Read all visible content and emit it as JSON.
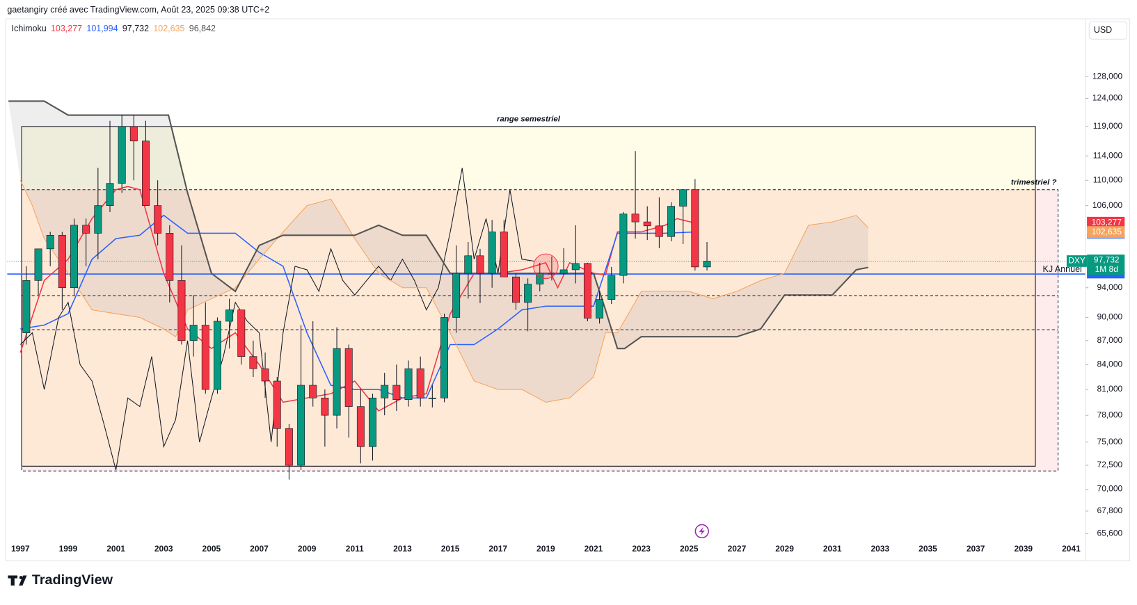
{
  "header": "gaetangiry créé avec TradingView.com, Août 23, 2025 09:38 UTC+2",
  "brand": "TradingView",
  "chart_data": {
    "type": "candlestick",
    "currency": "USD",
    "symbol": "DXY",
    "countdown": "1M 8d",
    "log_scale": true,
    "indicator": "Ichimoku",
    "indicator_values": [
      {
        "value": 103277,
        "label": "103,277"
      },
      {
        "value": 101994,
        "label": "101,994"
      },
      {
        "value": 97732,
        "label": "97,732"
      },
      {
        "value": 102635,
        "label": "102,635"
      },
      {
        "value": 96842,
        "label": "96,842"
      }
    ],
    "indicator_colors": [
      "#f23645",
      "#2962ff",
      "#131722",
      "#f7a35c",
      "#555555"
    ],
    "xlim": [
      1996.45,
      2041.6
    ],
    "ylim": [
      63300,
      139000
    ],
    "xticks": [
      1997,
      1999,
      2001,
      2003,
      2005,
      2007,
      2009,
      2011,
      2013,
      2015,
      2017,
      2019,
      2021,
      2023,
      2025,
      2027,
      2029,
      2031,
      2033,
      2035,
      2037,
      2039,
      2041
    ],
    "yticks": [
      {
        "value": 128000,
        "label": "128,000"
      },
      {
        "value": 124000,
        "label": "124,000"
      },
      {
        "value": 119000,
        "label": "119,000"
      },
      {
        "value": 114000,
        "label": "114,000"
      },
      {
        "value": 110000,
        "label": "110,000"
      },
      {
        "value": 106000,
        "label": "106,000"
      },
      {
        "value": 94000,
        "label": "94,000"
      },
      {
        "value": 90000,
        "label": "90,000"
      },
      {
        "value": 87000,
        "label": "87,000"
      },
      {
        "value": 84000,
        "label": "84,000"
      },
      {
        "value": 81000,
        "label": "81,000"
      },
      {
        "value": 78000,
        "label": "78,000"
      },
      {
        "value": 75000,
        "label": "75,000"
      },
      {
        "value": 72500,
        "label": "72,500"
      },
      {
        "value": 70000,
        "label": "70,000"
      },
      {
        "value": 67800,
        "label": "67,800"
      },
      {
        "value": 65600,
        "label": "65,600"
      }
    ],
    "up_color": "#089981",
    "down_color": "#f23645",
    "candles": {
      "x": [
        1997,
        1997.5,
        1998,
        1998.5,
        1999,
        1999.5,
        2000,
        2000.5,
        2001,
        2001.5,
        2002,
        2002.5,
        2003,
        2003.5,
        2004,
        2004.5,
        2005,
        2005.5,
        2006,
        2006.5,
        2007,
        2007.5,
        2008,
        2008.5,
        2009,
        2009.5,
        2010,
        2010.5,
        2011,
        2011.5,
        2012,
        2012.5,
        2013,
        2013.5,
        2014,
        2014.5,
        2015,
        2015.5,
        2016,
        2016.5,
        2017,
        2017.5,
        2018,
        2018.5,
        2019,
        2019.5,
        2020,
        2020.5,
        2021,
        2021.5,
        2022,
        2022.5,
        2023,
        2023.5,
        2024,
        2024.5,
        2025,
        2025.5
      ],
      "open": [
        88000,
        95000,
        99500,
        101500,
        94000,
        103000,
        101800,
        106000,
        109500,
        119000,
        116500,
        106000,
        101800,
        95000,
        87000,
        89000,
        81000,
        89500,
        91000,
        85000,
        83500,
        82000,
        76500,
        72500,
        81500,
        80000,
        78000,
        86000,
        79000,
        74500,
        80000,
        81500,
        79800,
        83500,
        80000,
        80000,
        90000,
        96000,
        98500,
        96000,
        102000,
        95500,
        92000,
        94500,
        96000,
        96000,
        96500,
        97400,
        89900,
        92400,
        95700,
        104700,
        103500,
        102900,
        101300,
        105900,
        108500,
        96900
      ],
      "high": [
        97000,
        99500,
        102000,
        102000,
        104000,
        104000,
        112000,
        120000,
        121000,
        121000,
        120000,
        110000,
        103000,
        100000,
        93000,
        92000,
        90000,
        92500,
        91000,
        87000,
        85500,
        82500,
        77000,
        89000,
        89500,
        81000,
        88700,
        86500,
        81000,
        80500,
        83000,
        84000,
        84500,
        85000,
        81500,
        90500,
        100000,
        100500,
        99500,
        103800,
        103800,
        96000,
        95300,
        97500,
        98400,
        99600,
        103000,
        97500,
        93500,
        96900,
        105000,
        114800,
        105900,
        107300,
        106500,
        108500,
        110200,
        100500
      ],
      "low": [
        86500,
        93000,
        97000,
        91000,
        93000,
        97000,
        98000,
        105000,
        108000,
        110000,
        106000,
        100000,
        92000,
        86500,
        85000,
        80500,
        80500,
        86000,
        84000,
        82500,
        80000,
        74500,
        71000,
        72000,
        79000,
        74500,
        76500,
        75500,
        72700,
        73000,
        78000,
        78500,
        79000,
        79000,
        78900,
        79500,
        88000,
        92500,
        91900,
        94000,
        95500,
        91000,
        88200,
        93500,
        95000,
        95800,
        94600,
        89500,
        89200,
        91800,
        94600,
        101000,
        100800,
        99600,
        100600,
        100200,
        96400,
        96400
      ],
      "close": [
        95000,
        99500,
        101500,
        94000,
        103000,
        101800,
        106000,
        109500,
        119000,
        116500,
        106000,
        101800,
        95000,
        87000,
        89000,
        81000,
        89500,
        91000,
        85000,
        83500,
        82000,
        76500,
        72500,
        81500,
        80000,
        78000,
        86000,
        79000,
        74500,
        80000,
        81500,
        79800,
        83500,
        80000,
        80000,
        90000,
        96000,
        98500,
        96000,
        102000,
        95500,
        92000,
        94500,
        96000,
        96000,
        96500,
        97400,
        89900,
        92400,
        95700,
        104700,
        103500,
        102900,
        101300,
        105900,
        108500,
        96900,
        97732
      ]
    },
    "ichimoku_lines": [
      {
        "color": "#f23645",
        "width": 1.5,
        "x": [
          1997,
          1998,
          1999,
          2000,
          2001,
          2001.5,
          2002,
          2003,
          2004,
          2005,
          2006,
          2007,
          2008,
          2009,
          2010,
          2011,
          2012,
          2013,
          2014,
          2015,
          2016,
          2017,
          2018,
          2019,
          2019.5,
          2020,
          2021,
          2021.5,
          2022,
          2023,
          2024,
          2024.5,
          2025.3
        ],
        "values": [
          85500,
          95000,
          98000,
          104000,
          108500,
          109000,
          108500,
          96000,
          88500,
          86000,
          88000,
          84000,
          79500,
          80000,
          80500,
          82000,
          78500,
          80000,
          80500,
          90500,
          96000,
          96000,
          96500,
          97500,
          94000,
          97500,
          96000,
          95800,
          102000,
          102000,
          103000,
          104000,
          103277
        ]
      },
      {
        "color": "#2962ff",
        "width": 1.5,
        "x": [
          1997,
          1998,
          1999,
          2000,
          2001,
          2002,
          2003,
          2004,
          2005,
          2006,
          2007,
          2008,
          2009,
          2010,
          2011,
          2012,
          2013,
          2014,
          2015,
          2016,
          2017,
          2018,
          2019,
          2020,
          2021,
          2021.5,
          2022,
          2024,
          2025.3
        ],
        "values": [
          88500,
          89000,
          90500,
          98000,
          101000,
          101500,
          104500,
          101800,
          101800,
          101800,
          99000,
          97000,
          88000,
          81500,
          81000,
          81000,
          80000,
          80000,
          86500,
          86500,
          88500,
          91000,
          91500,
          91500,
          91500,
          96500,
          101800,
          101800,
          101994
        ]
      },
      {
        "color": "#131722",
        "width": 1,
        "x": [
          1997,
          1997.5,
          1998,
          1998.6,
          1999,
          1999.5,
          2000,
          2000.5,
          2001,
          2001.5,
          2002,
          2002.5,
          2003,
          2003.5,
          2004,
          2004.5,
          2005,
          2005.5,
          2006,
          2006.5,
          2007,
          2007.5,
          2008,
          2008.5,
          2009,
          2009.5,
          2010,
          2010.5,
          2011,
          2011.5,
          2012,
          2012.5,
          2013,
          2013.5,
          2014,
          2014.5,
          2015,
          2015.5,
          2016,
          2016.5,
          2017,
          2017.5,
          2018,
          2018.5
        ],
        "values": [
          86500,
          88000,
          81000,
          90000,
          92000,
          84000,
          82000,
          77000,
          72000,
          80000,
          79000,
          85000,
          74500,
          77500,
          87000,
          75000,
          80000,
          85000,
          92000,
          89500,
          88000,
          75000,
          88000,
          97000,
          96500,
          93500,
          99500,
          95000,
          93000,
          95000,
          97000,
          95000,
          98000,
          95000,
          91000,
          94000,
          102000,
          112000,
          98000,
          104000,
          96000,
          108500,
          98000,
          97732
        ]
      },
      {
        "color": "#f7a35c",
        "width": 1,
        "x": [
          1997,
          1997.5,
          1998,
          1999,
          2000,
          2001,
          2002,
          2003,
          2003.5,
          2004,
          2005,
          2006,
          2007,
          2008,
          2009,
          2010,
          2010.5,
          2011,
          2012,
          2013,
          2014,
          2015,
          2016,
          2017,
          2018,
          2019,
          2020,
          2021,
          2021.5,
          2022,
          2023,
          2024,
          2025,
          2026,
          2027,
          2028,
          2029,
          2030,
          2031,
          2032,
          2032.5
        ],
        "values": [
          110000,
          106000,
          101000,
          96000,
          91000,
          90500,
          90000,
          88500,
          87500,
          91000,
          92500,
          94000,
          98000,
          102000,
          106000,
          107000,
          104000,
          101000,
          96000,
          94000,
          94000,
          88000,
          82000,
          81000,
          81000,
          79500,
          80000,
          82500,
          88000,
          88000,
          93500,
          93500,
          93500,
          92500,
          93500,
          95000,
          96000,
          103000,
          103500,
          104500,
          102635
        ]
      },
      {
        "color": "#555555",
        "width": 2,
        "x": [
          1996.5,
          1998,
          1999,
          2002,
          2003.2,
          2004,
          2005,
          2006,
          2007,
          2008,
          2011,
          2012,
          2013,
          2014,
          2015,
          2017,
          2020,
          2021,
          2021.5,
          2022,
          2022.3,
          2023,
          2027,
          2028,
          2029,
          2031,
          2032,
          2032.5
        ],
        "values": [
          123500,
          123500,
          121000,
          121000,
          121000,
          108000,
          96000,
          93500,
          100000,
          101500,
          101500,
          103000,
          101500,
          101500,
          96000,
          96000,
          96000,
          96000,
          91000,
          86000,
          86000,
          87500,
          87500,
          88500,
          93000,
          93000,
          96500,
          96842
        ]
      }
    ],
    "range_box": {
      "label": "range semestriel",
      "x": [
        1997.05,
        2039.5
      ],
      "y": [
        72400,
        119000
      ]
    },
    "quarter_box": {
      "label": "trimestriel ?",
      "x": [
        1997.05,
        2040.45
      ],
      "y": [
        71900,
        108500
      ]
    },
    "dashed_levels": [
      92900,
      88400
    ],
    "kj_level": {
      "label": "KJ Annuel",
      "value": 95900
    },
    "circle": {
      "x": 2019,
      "value": 97000
    }
  }
}
